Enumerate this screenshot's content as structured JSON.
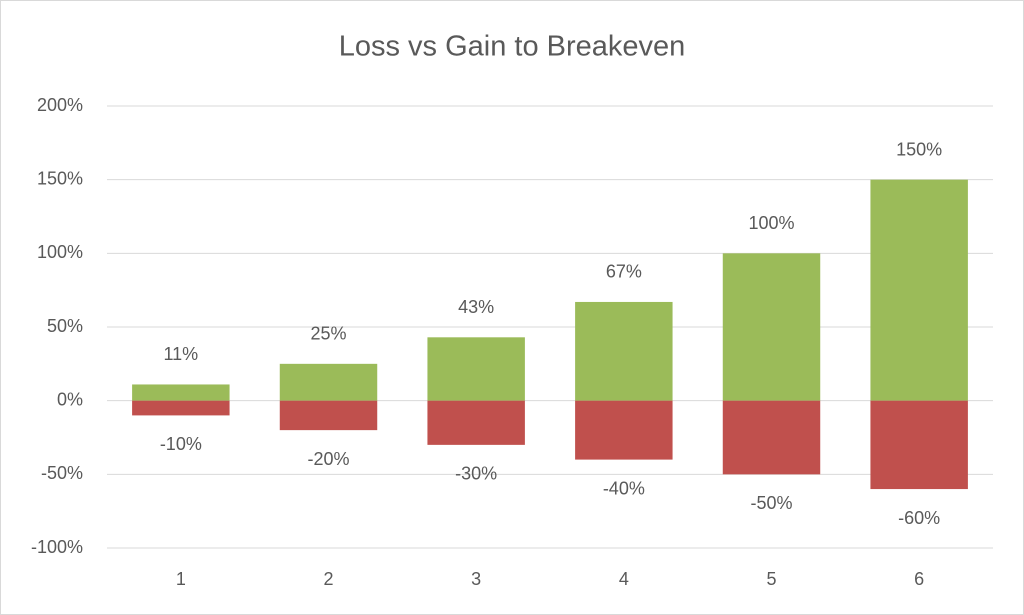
{
  "chart_data": {
    "type": "bar",
    "title": "Loss vs Gain to Breakeven",
    "categories": [
      "1",
      "2",
      "3",
      "4",
      "5",
      "6"
    ],
    "series": [
      {
        "color": "#9bbb59",
        "values": [
          11,
          25,
          43,
          67,
          100,
          150
        ],
        "value_labels": [
          "11%",
          "25%",
          "43%",
          "67%",
          "100%",
          "150%"
        ]
      },
      {
        "color": "#c0504d",
        "values": [
          -10,
          -20,
          -30,
          -40,
          -50,
          -60
        ],
        "value_labels": [
          "-10%",
          "-20%",
          "-30%",
          "-40%",
          "-50%",
          "-60%"
        ]
      }
    ],
    "ylim": [
      -100,
      200
    ],
    "yticks": [
      {
        "value": -100,
        "label": "-100%"
      },
      {
        "value": -50,
        "label": "-50%"
      },
      {
        "value": 0,
        "label": "0%"
      },
      {
        "value": 50,
        "label": "50%"
      },
      {
        "value": 100,
        "label": "100%"
      },
      {
        "value": 150,
        "label": "150%"
      },
      {
        "value": 200,
        "label": "200%"
      }
    ],
    "grid": true
  }
}
